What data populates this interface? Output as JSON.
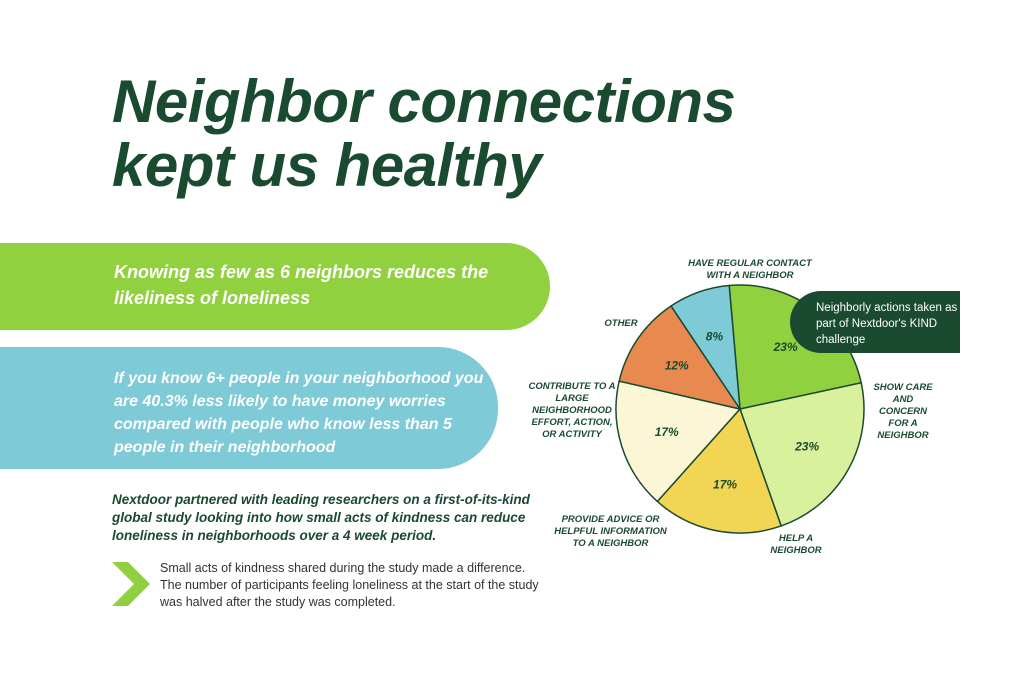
{
  "title": "Neighbor connections kept us healthy",
  "green_band": "Knowing as few as 6 neighbors reduces the likeliness of loneliness",
  "blue_band": "If you know 6+ people in your neighborhood you are 40.3% less likely to have money worries compared with people who know less than 5 people in their neighborhood",
  "partner_text": "Nextdoor partnered with leading researchers on a first-of-its-kind global study looking into how small acts of kindness can reduce loneliness in neighborhoods over a 4 week period.",
  "note_text": "Small acts of kindness shared during the study made a difference. The number of participants feeling loneliness at the start of the study was halved after the study was completed.",
  "callout": "Neighborly actions taken as part of Nextdoor's KIND challenge",
  "chevron_icon": "chevron-right-icon",
  "colors": {
    "title": "#1a4a30",
    "green": "#91d03f",
    "blue": "#7ecad6",
    "dark": "#1a4a30"
  },
  "chart_data": {
    "type": "pie",
    "slices": [
      {
        "label": "HAVE REGULAR CONTACT WITH A NEIGHBOR",
        "value": 23,
        "display": "23%",
        "color": "#91d03f"
      },
      {
        "label": "SHOW CARE AND CONCERN FOR A NEIGHBOR",
        "value": 23,
        "display": "23%",
        "color": "#d9f09c"
      },
      {
        "label": "HELP A NEIGHBOR",
        "value": 17,
        "display": "17%",
        "color": "#f2d553"
      },
      {
        "label": "PROVIDE ADVICE OR HELPFUL INFORMATION TO A NEIGHBOR",
        "value": 17,
        "display": "17%",
        "color": "#fbf6d6"
      },
      {
        "label": "CONTRIBUTE TO A LARGE NEIGHBORHOOD EFFORT, ACTION, OR ACTIVITY",
        "value": 12,
        "display": "12%",
        "color": "#e8894f"
      },
      {
        "label": "OTHER",
        "value": 8,
        "display": "8%",
        "color": "#7ecad6"
      }
    ]
  }
}
